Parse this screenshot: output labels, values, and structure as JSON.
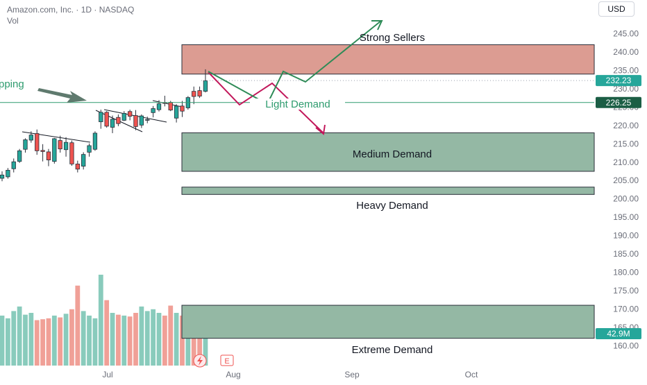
{
  "header": {
    "title": "Amazon.com, Inc. · 1D · NASDAQ",
    "volume_label": "Vol"
  },
  "currency_button": "USD",
  "colors": {
    "up": "#26a69a",
    "down": "#ef5350",
    "up_volume": "#89cbbc",
    "down_volume": "#f0a097",
    "seller_zone": "#dc9c92",
    "demand_zone": "#94b8a4",
    "forecast_up": "#2e8b57",
    "forecast_down": "#c2185b",
    "arrow_gray": "#5f7a6e",
    "trend_line": "#131722",
    "light_demand_line": "#2e9b6e",
    "price_badge": "#26a69a",
    "level_badge": "#1b5e45"
  },
  "chart_data": {
    "type": "candlestick",
    "symbol": "Amazon.com, Inc.",
    "interval": "1D",
    "exchange": "NASDAQ",
    "price_axis": {
      "range": [
        157,
        249
      ],
      "ticks": [
        "245.00",
        "240.00",
        "235.00",
        "230.00",
        "225.00",
        "220.00",
        "215.00",
        "210.00",
        "205.00",
        "200.00",
        "195.00",
        "190.00",
        "185.00",
        "180.00",
        "175.00",
        "170.00",
        "165.00",
        "160.00"
      ]
    },
    "time_axis": {
      "labels": [
        "Jul",
        "Aug",
        "Sep",
        "Oct"
      ]
    },
    "candles": [
      {
        "o": 205.6,
        "h": 207.5,
        "l": 204.8,
        "c": 206.5
      },
      {
        "o": 206.0,
        "h": 208.4,
        "l": 205.5,
        "c": 207.8
      },
      {
        "o": 208.2,
        "h": 211.0,
        "l": 207.2,
        "c": 210.1
      },
      {
        "o": 210.2,
        "h": 213.6,
        "l": 209.8,
        "c": 213.1
      },
      {
        "o": 213.5,
        "h": 216.5,
        "l": 212.6,
        "c": 216.1
      },
      {
        "o": 216.0,
        "h": 218.4,
        "l": 215.3,
        "c": 217.4
      },
      {
        "o": 217.8,
        "h": 218.9,
        "l": 212.0,
        "c": 213.1
      },
      {
        "o": 213.2,
        "h": 214.9,
        "l": 210.2,
        "c": 212.9
      },
      {
        "o": 212.8,
        "h": 213.6,
        "l": 208.9,
        "c": 210.6
      },
      {
        "o": 210.2,
        "h": 216.6,
        "l": 209.6,
        "c": 216.4
      },
      {
        "o": 215.9,
        "h": 217.2,
        "l": 212.6,
        "c": 213.6
      },
      {
        "o": 213.4,
        "h": 216.8,
        "l": 211.5,
        "c": 215.4
      },
      {
        "o": 215.3,
        "h": 215.9,
        "l": 209.0,
        "c": 209.5
      },
      {
        "o": 209.5,
        "h": 210.4,
        "l": 207.2,
        "c": 208.1
      },
      {
        "o": 208.9,
        "h": 212.7,
        "l": 208.0,
        "c": 212.1
      },
      {
        "o": 212.7,
        "h": 215.1,
        "l": 211.5,
        "c": 214.5
      },
      {
        "o": 213.5,
        "h": 218.4,
        "l": 213.1,
        "c": 217.9
      },
      {
        "o": 221.0,
        "h": 224.3,
        "l": 219.1,
        "c": 223.6
      },
      {
        "o": 223.6,
        "h": 223.9,
        "l": 219.4,
        "c": 219.8
      },
      {
        "o": 219.5,
        "h": 222.7,
        "l": 217.9,
        "c": 221.7
      },
      {
        "o": 222.2,
        "h": 223.0,
        "l": 219.8,
        "c": 220.5
      },
      {
        "o": 221.4,
        "h": 223.9,
        "l": 221.2,
        "c": 223.3
      },
      {
        "o": 223.8,
        "h": 224.3,
        "l": 221.4,
        "c": 222.5
      },
      {
        "o": 222.7,
        "h": 224.2,
        "l": 218.7,
        "c": 219.7
      },
      {
        "o": 220.1,
        "h": 223.0,
        "l": 219.3,
        "c": 222.6
      },
      {
        "o": 221.5,
        "h": 222.4,
        "l": 220.6,
        "c": 221.6
      },
      {
        "o": 223.5,
        "h": 225.3,
        "l": 222.2,
        "c": 224.6
      },
      {
        "o": 224.3,
        "h": 226.9,
        "l": 223.8,
        "c": 225.9
      },
      {
        "o": 226.2,
        "h": 228.1,
        "l": 225.2,
        "c": 226.0
      },
      {
        "o": 226.3,
        "h": 226.7,
        "l": 223.9,
        "c": 224.2
      },
      {
        "o": 222.0,
        "h": 225.8,
        "l": 220.8,
        "c": 225.3
      },
      {
        "o": 225.3,
        "h": 226.7,
        "l": 222.3,
        "c": 223.9
      },
      {
        "o": 224.8,
        "h": 228.0,
        "l": 224.3,
        "c": 227.6
      },
      {
        "o": 229.3,
        "h": 230.6,
        "l": 225.8,
        "c": 227.9
      },
      {
        "o": 229.5,
        "h": 230.6,
        "l": 227.5,
        "c": 228.0
      },
      {
        "o": 229.3,
        "h": 235.3,
        "l": 229.0,
        "c": 232.2
      }
    ],
    "volume": {
      "scale_max": 100,
      "values": [
        55,
        52,
        60,
        65,
        56,
        58,
        50,
        51,
        52,
        55,
        53,
        57,
        62,
        88,
        60,
        55,
        52,
        100,
        72,
        58,
        56,
        55,
        54,
        58,
        65,
        60,
        62,
        58,
        55,
        66,
        58,
        55,
        50,
        48,
        42,
        48
      ]
    },
    "zones": [
      {
        "label": "Strong Sellers",
        "from": 234.0,
        "to": 242.0,
        "kind": "sellers"
      },
      {
        "label": "Medium Demand",
        "from": 207.5,
        "to": 218.0,
        "kind": "demand"
      },
      {
        "label": "Heavy Demand",
        "from": 201.2,
        "to": 203.2,
        "kind": "demand"
      },
      {
        "label": "Extreme Demand",
        "from": 162.0,
        "to": 171.0,
        "kind": "demand"
      }
    ],
    "levels": [
      {
        "label": "Light Demand",
        "value": 226.25,
        "badge": "226.25"
      },
      {
        "label": "",
        "value": 232.23,
        "badge": "232.23",
        "style": "dotted"
      }
    ],
    "volume_badge": "42.9M",
    "annotations": [
      {
        "text": "pping",
        "kind": "clipped-label"
      }
    ],
    "event_markers": [
      "E"
    ]
  }
}
